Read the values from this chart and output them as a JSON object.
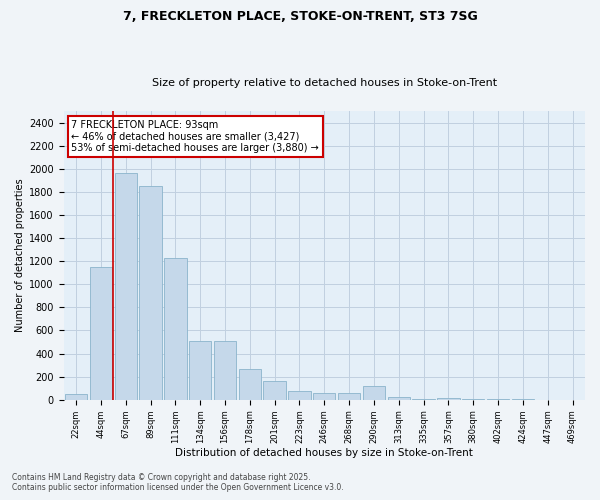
{
  "title_line1": "7, FRECKLETON PLACE, STOKE-ON-TRENT, ST3 7SG",
  "title_line2": "Size of property relative to detached houses in Stoke-on-Trent",
  "xlabel": "Distribution of detached houses by size in Stoke-on-Trent",
  "ylabel": "Number of detached properties",
  "categories": [
    "22sqm",
    "44sqm",
    "67sqm",
    "89sqm",
    "111sqm",
    "134sqm",
    "156sqm",
    "178sqm",
    "201sqm",
    "223sqm",
    "246sqm",
    "268sqm",
    "290sqm",
    "313sqm",
    "335sqm",
    "357sqm",
    "380sqm",
    "402sqm",
    "424sqm",
    "447sqm",
    "469sqm"
  ],
  "values": [
    50,
    1150,
    1960,
    1850,
    1230,
    510,
    510,
    270,
    165,
    75,
    55,
    55,
    115,
    20,
    8,
    15,
    5,
    3,
    3,
    2,
    2
  ],
  "bar_color": "#c5d8ea",
  "bar_edge_color": "#8ab4cc",
  "red_line_x": 1.5,
  "annotation_text": "7 FRECKLETON PLACE: 93sqm\n← 46% of detached houses are smaller (3,427)\n53% of semi-detached houses are larger (3,880) →",
  "annotation_box_color": "#ffffff",
  "annotation_box_edge": "#cc0000",
  "red_line_color": "#cc0000",
  "grid_color": "#c0d0e0",
  "bg_color": "#dce8f4",
  "plot_bg_color": "#e4eff8",
  "fig_bg_color": "#f0f4f8",
  "ylim": [
    0,
    2500
  ],
  "yticks": [
    0,
    200,
    400,
    600,
    800,
    1000,
    1200,
    1400,
    1600,
    1800,
    2000,
    2200,
    2400
  ],
  "footer_line1": "Contains HM Land Registry data © Crown copyright and database right 2025.",
  "footer_line2": "Contains public sector information licensed under the Open Government Licence v3.0."
}
